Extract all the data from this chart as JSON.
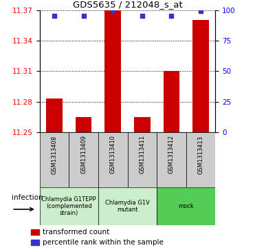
{
  "title": "GDS5635 / 212048_s_at",
  "samples": [
    "GSM1313408",
    "GSM1313409",
    "GSM1313410",
    "GSM1313411",
    "GSM1313412",
    "GSM1313413"
  ],
  "bar_values": [
    11.283,
    11.265,
    11.37,
    11.265,
    11.31,
    11.36
  ],
  "percentile_values": [
    95,
    95,
    99,
    95,
    95,
    99
  ],
  "ylim_left": [
    11.25,
    11.37
  ],
  "yticks_left": [
    11.25,
    11.28,
    11.31,
    11.34,
    11.37
  ],
  "yticks_right": [
    0,
    25,
    50,
    75,
    100
  ],
  "bar_color": "#cc0000",
  "dot_color": "#3333cc",
  "group_info": [
    {
      "label": "Chlamydia G1TEPP\n(complemented\nstrain)",
      "color": "#cceecc",
      "start": 0,
      "end": 2
    },
    {
      "label": "Chlamydia G1V\nmutant",
      "color": "#cceecc",
      "start": 2,
      "end": 4
    },
    {
      "label": "mock",
      "color": "#55cc55",
      "start": 4,
      "end": 6
    }
  ],
  "sample_box_color": "#cccccc",
  "xlabel_label": "infection",
  "legend_items": [
    {
      "color": "#cc0000",
      "label": "transformed count"
    },
    {
      "color": "#3333cc",
      "label": "percentile rank within the sample"
    }
  ]
}
